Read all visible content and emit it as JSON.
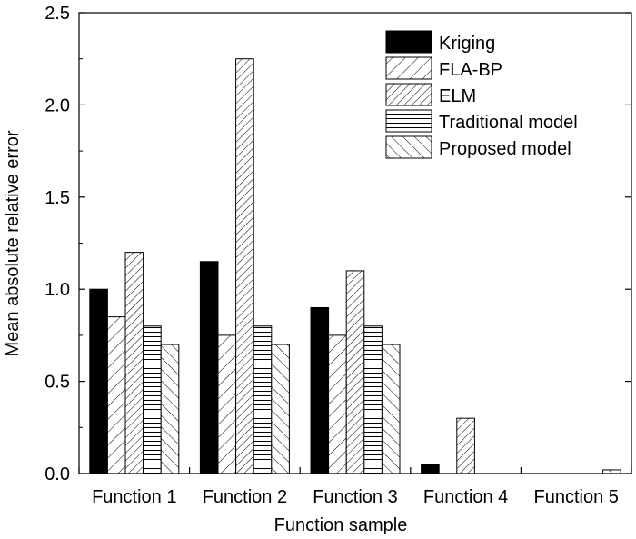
{
  "chart_data": {
    "type": "bar",
    "title": "",
    "xlabel": "Function sample",
    "ylabel": "Mean absolute relative error",
    "ylim": [
      0,
      2.5
    ],
    "yticks": [
      "0.0",
      "0.5",
      "1.0",
      "1.5",
      "2.0",
      "2.5"
    ],
    "categories": [
      "Function 1",
      "Function 2",
      "Function 3",
      "Function 4",
      "Function 5"
    ],
    "legend_position": "top-right",
    "grid": false,
    "series": [
      {
        "name": "Kriging",
        "pattern": "solid",
        "values": [
          1.0,
          1.15,
          0.9,
          0.05,
          0.0
        ]
      },
      {
        "name": "FLA-BP",
        "pattern": "diag-fine",
        "values": [
          0.85,
          0.75,
          0.75,
          0.0,
          0.0
        ]
      },
      {
        "name": "ELM",
        "pattern": "diag-dense",
        "values": [
          1.2,
          2.25,
          1.1,
          0.3,
          0.0
        ]
      },
      {
        "name": "Traditional model",
        "pattern": "horizontal",
        "values": [
          0.8,
          0.8,
          0.8,
          0.0,
          0.0
        ]
      },
      {
        "name": "Proposed model",
        "pattern": "back-diag",
        "values": [
          0.7,
          0.7,
          0.7,
          0.0,
          0.02
        ]
      }
    ]
  }
}
